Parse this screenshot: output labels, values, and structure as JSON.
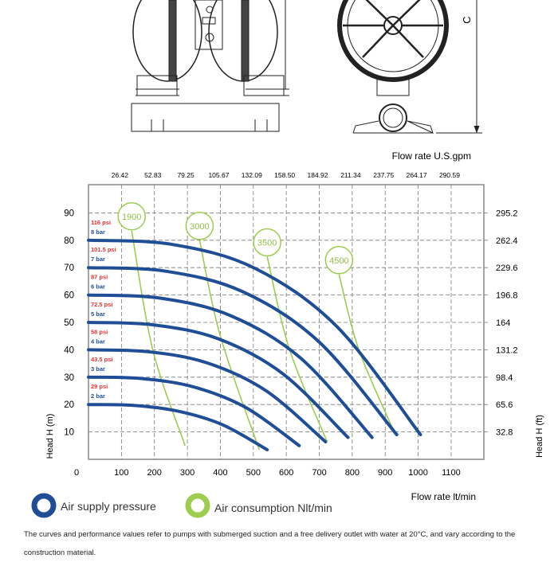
{
  "drawing": {
    "dimension_label": "C"
  },
  "chart_data": {
    "type": "line",
    "title": "",
    "xlabel": "Flow rate  lt/min",
    "xlabel_top": "Flow rate U.S.gpm",
    "ylabel": "Head H (m)",
    "ylabel_right": "Head H (ft)",
    "xlim": [
      0,
      1200
    ],
    "ylim": [
      0,
      100
    ],
    "grid": true,
    "x_ticks": [
      "0",
      "100",
      "200",
      "300",
      "400",
      "500",
      "600",
      "700",
      "800",
      "900",
      "1000",
      "1100"
    ],
    "x_top_ticks": [
      "26.42",
      "52.83",
      "79.25",
      "105.67",
      "132.09",
      "158.50",
      "184.92",
      "211.34",
      "237.75",
      "264.17",
      "290.59"
    ],
    "y_ticks": [
      "90",
      "80",
      "70",
      "60",
      "50",
      "40",
      "30",
      "20",
      "10"
    ],
    "y_right_ticks": [
      "295.2",
      "262.4",
      "229.6",
      "196.8",
      "164",
      "131.2",
      "98.4",
      "65.6",
      "32.8"
    ],
    "colors": {
      "pressure": "#1f4e96",
      "air": "#9ccc50",
      "psi_label": "#e8322f",
      "bar_label": "#1f4e96"
    },
    "pressure_series": [
      {
        "bar": "8 bar",
        "psi": "116 psi",
        "points": [
          [
            0,
            80
          ],
          [
            252,
            78.5
          ],
          [
            504,
            69.8
          ],
          [
            755,
            48.3
          ],
          [
            1007,
            9
          ]
        ]
      },
      {
        "bar": "7 bar",
        "psi": "101.5 psi",
        "points": [
          [
            0,
            70
          ],
          [
            234,
            68.7
          ],
          [
            468,
            61.2
          ],
          [
            701,
            42.7
          ],
          [
            935,
            9
          ]
        ]
      },
      {
        "bar": "6 bar",
        "psi": "87 psi",
        "points": [
          [
            0,
            60
          ],
          [
            215,
            58.9
          ],
          [
            430,
            52.5
          ],
          [
            645,
            36.8
          ],
          [
            860,
            8
          ]
        ]
      },
      {
        "bar": "5 bar",
        "psi": "72.5 psi",
        "points": [
          [
            0,
            50
          ],
          [
            197,
            49.1
          ],
          [
            394,
            44
          ],
          [
            590,
            31.2
          ],
          [
            787,
            8
          ]
        ]
      },
      {
        "bar": "4 bar",
        "psi": "58 psi",
        "points": [
          [
            0,
            40
          ],
          [
            180,
            39.3
          ],
          [
            360,
            35.2
          ],
          [
            539,
            25
          ],
          [
            719,
            6.4
          ]
        ]
      },
      {
        "bar": "3 bar",
        "psi": "43.5 psi",
        "points": [
          [
            0,
            30
          ],
          [
            160,
            29.5
          ],
          [
            320,
            26.4
          ],
          [
            479,
            18.8
          ],
          [
            639,
            5
          ]
        ]
      },
      {
        "bar": "2 bar",
        "psi": "29 psi",
        "points": [
          [
            0,
            20
          ],
          [
            136,
            19.7
          ],
          [
            271,
            17.6
          ],
          [
            407,
            12.6
          ],
          [
            542,
            3.5
          ]
        ]
      }
    ],
    "air_series": [
      {
        "name": "1900",
        "points": [
          [
            131,
            83.5
          ],
          [
            195,
            40
          ],
          [
            293,
            5
          ]
        ]
      },
      {
        "name": "3000",
        "points": [
          [
            337,
            80
          ],
          [
            400,
            45
          ],
          [
            518,
            3.5
          ]
        ]
      },
      {
        "name": "3500",
        "points": [
          [
            542,
            74
          ],
          [
            610,
            40
          ],
          [
            724,
            6.4
          ]
        ]
      },
      {
        "name": "4500",
        "points": [
          [
            760,
            67.5
          ],
          [
            820,
            40
          ],
          [
            930,
            9.3
          ]
        ]
      }
    ],
    "legend": {
      "pressure": "Air supply pressure",
      "air": "Air consumption Nlt/min",
      "placement": "bottom-left"
    }
  },
  "footnote": "The curves and performance values refer to pumps with submerged suction and a free delivery outlet with water at 20°C, and vary according to the construction material."
}
